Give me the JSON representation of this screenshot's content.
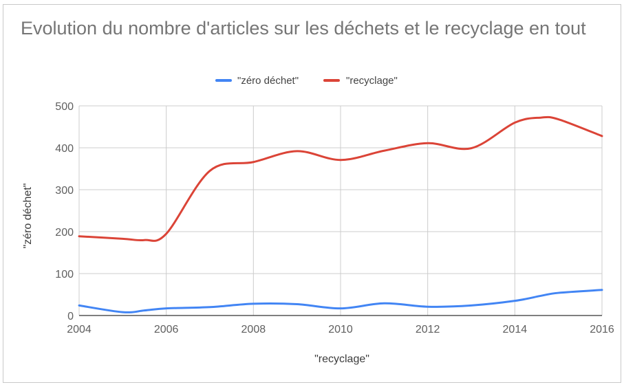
{
  "chart_data": {
    "type": "line",
    "title": "Evolution du nombre d'articles sur les déchets et le recyclage en tout",
    "xlabel": "\"recyclage\"",
    "ylabel": "\"zéro déchet\"",
    "xlim": [
      2004,
      2016
    ],
    "ylim": [
      0,
      500
    ],
    "x_ticks": [
      2004,
      2006,
      2008,
      2010,
      2012,
      2014,
      2016
    ],
    "y_ticks": [
      0,
      100,
      200,
      300,
      400,
      500
    ],
    "grid": true,
    "legend_position": "top",
    "x": [
      2004,
      2005,
      2005.5,
      2006,
      2007,
      2008,
      2009,
      2010,
      2011,
      2012,
      2013,
      2014,
      2014.6,
      2015,
      2016
    ],
    "series": [
      {
        "name": "\"zéro déchet\"",
        "color": "#4285f4",
        "values": [
          24,
          8,
          12,
          17,
          20,
          28,
          27,
          17,
          29,
          21,
          24,
          35,
          47,
          54,
          61
        ]
      },
      {
        "name": "\"recyclage\"",
        "color": "#db4437",
        "values": [
          189,
          183,
          180,
          195,
          345,
          366,
          392,
          371,
          393,
          411,
          399,
          460,
          472,
          468,
          428
        ]
      }
    ]
  }
}
